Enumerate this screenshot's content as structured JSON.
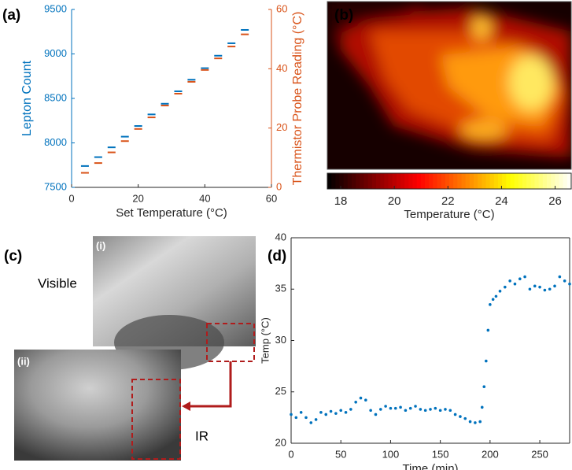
{
  "chart_data": [
    {
      "type": "scatter",
      "xlabel": "Set Temperature (°C)",
      "ylabel": "Lepton Count",
      "y2label": "Thermistor Probe Reading (°C)",
      "x": [
        4,
        8,
        12,
        16,
        20,
        24,
        28,
        32,
        36,
        40,
        44,
        48,
        52
      ],
      "series": [
        {
          "color": "#0072bd",
          "values": [
            7740,
            7840,
            7950,
            8070,
            8190,
            8320,
            8440,
            8580,
            8710,
            8840,
            8980,
            9120,
            9270
          ]
        },
        {
          "color": "#d95319",
          "axis": "y2",
          "values": [
            4.9,
            8.2,
            11.8,
            15.6,
            19.7,
            23.6,
            27.6,
            31.6,
            35.6,
            39.6,
            43.5,
            47.5,
            51.6
          ]
        }
      ],
      "xlim": [
        0,
        60
      ],
      "xticks": [
        0,
        20,
        40,
        60
      ],
      "ylim": [
        7500,
        9500
      ],
      "yticks": [
        7500,
        8000,
        8500,
        9000,
        9500
      ],
      "y2lim": [
        0,
        60
      ],
      "y2ticks": [
        0,
        20,
        40,
        60
      ]
    },
    {
      "type": "heatmap",
      "colormap": "hot",
      "clim": [
        17.5,
        26.6
      ],
      "cticks": [
        18,
        20,
        22,
        24,
        26
      ],
      "clabel": "Temperature (°C)"
    },
    {
      "type": "scatter",
      "xlabel": "Time (min)",
      "ylabel": "Temp (°C)",
      "box": true,
      "x": [
        0,
        5,
        10,
        15,
        20,
        25,
        30,
        35,
        40,
        45,
        50,
        55,
        60,
        65,
        70,
        75,
        80,
        85,
        90,
        95,
        100,
        105,
        110,
        115,
        120,
        125,
        130,
        135,
        140,
        145,
        150,
        155,
        160,
        165,
        170,
        175,
        180,
        185,
        190,
        192,
        194,
        196,
        198,
        200,
        203,
        206,
        210,
        215,
        220,
        225,
        230,
        235,
        240,
        245,
        250,
        255,
        260,
        265,
        270,
        275,
        280
      ],
      "series": [
        {
          "color": "#0072bd",
          "values": [
            22.8,
            22.5,
            23.0,
            22.5,
            22.0,
            22.3,
            23.0,
            22.8,
            23.1,
            22.9,
            23.2,
            23.0,
            23.3,
            24.0,
            24.4,
            24.2,
            23.2,
            22.8,
            23.3,
            23.6,
            23.4,
            23.4,
            23.5,
            23.2,
            23.4,
            23.6,
            23.3,
            23.2,
            23.3,
            23.4,
            23.2,
            23.3,
            23.2,
            22.8,
            22.6,
            22.4,
            22.1,
            22.0,
            22.1,
            23.5,
            25.5,
            28.0,
            31.0,
            33.5,
            34.0,
            34.3,
            34.8,
            35.2,
            35.8,
            35.5,
            36.0,
            36.2,
            35.0,
            35.3,
            35.2,
            34.9,
            35.0,
            35.3,
            36.2,
            35.8,
            35.5
          ]
        }
      ],
      "xlim": [
        0,
        280
      ],
      "xticks": [
        0,
        50,
        100,
        150,
        200,
        250
      ],
      "ylim": [
        20,
        40
      ],
      "yticks": [
        20,
        25,
        30,
        35,
        40
      ]
    }
  ],
  "figure": {
    "panel_labels": [
      "(a)",
      "(b)",
      "(c)",
      "(d)"
    ],
    "photo_labels": [
      "(i)",
      "(ii)"
    ],
    "captions": [
      "Visible",
      "IR"
    ]
  }
}
